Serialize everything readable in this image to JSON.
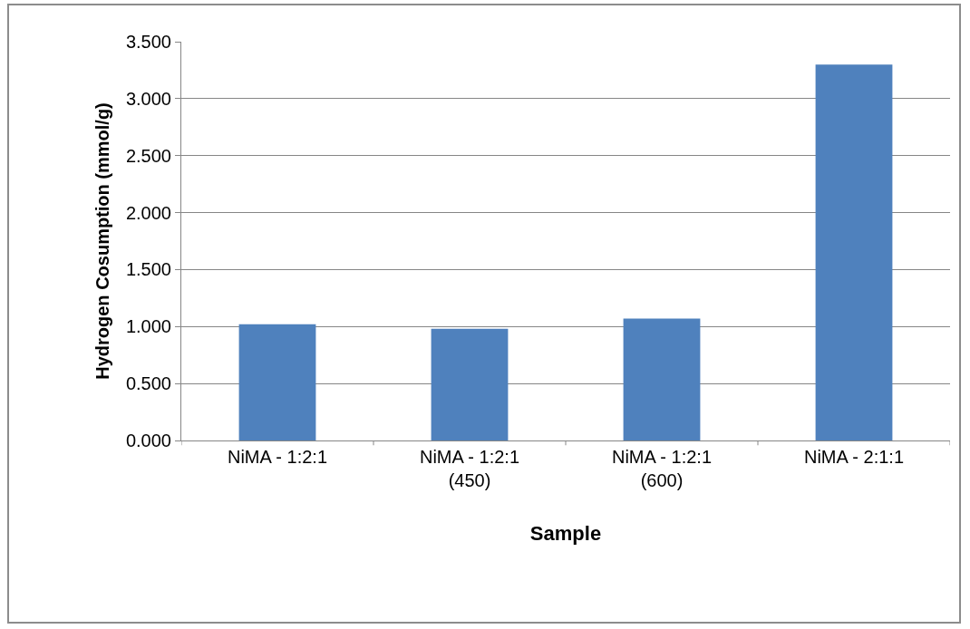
{
  "chart_data": {
    "type": "bar",
    "xlabel": "Sample",
    "ylabel": "Hydrogen Cosumption (mmol/g)",
    "categories": [
      "NiMA - 1:2:1",
      "NiMA - 1:2:1\n(450)",
      "NiMA - 1:2:1\n(600)",
      "NiMA - 2:1:1"
    ],
    "values": [
      1.02,
      0.98,
      1.07,
      3.3
    ],
    "color": "#4f81bd",
    "ylim": [
      0,
      3.5
    ],
    "yticks": [
      {
        "value": 0,
        "label": "0.000"
      },
      {
        "value": 0.5,
        "label": "0.500"
      },
      {
        "value": 1,
        "label": "1.000"
      },
      {
        "value": 1.5,
        "label": "1.500"
      },
      {
        "value": 2,
        "label": "2.000"
      },
      {
        "value": 2.5,
        "label": "2.500"
      },
      {
        "value": 3,
        "label": "3.000"
      },
      {
        "value": 3.5,
        "label": "3.500"
      }
    ],
    "grid": "y"
  }
}
